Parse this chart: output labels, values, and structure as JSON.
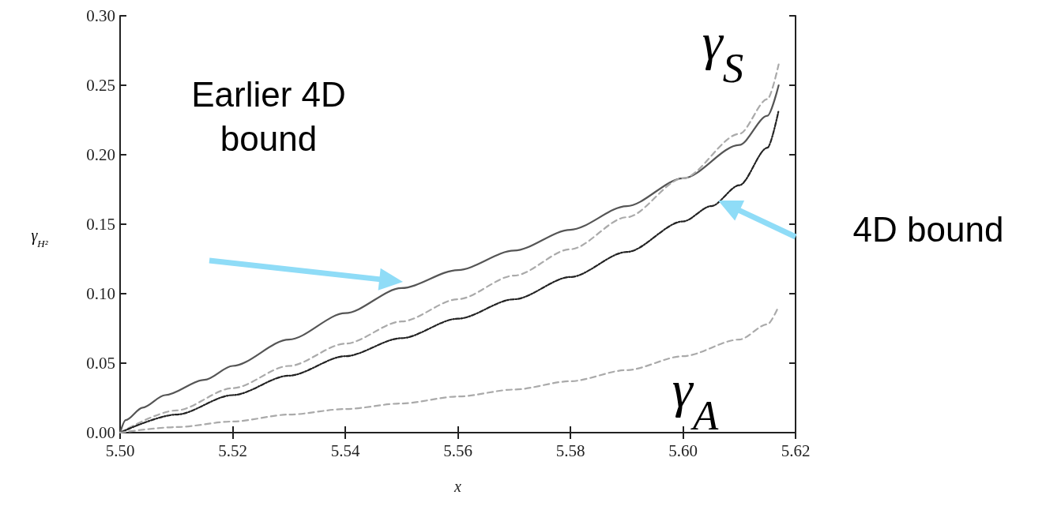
{
  "chart_data": {
    "type": "line",
    "xlabel": "x",
    "ylabel": "γ$_{H²}$",
    "xlim": [
      5.5,
      5.62
    ],
    "ylim": [
      0,
      0.3
    ],
    "xticks": [
      {
        "value": 5.5,
        "label": "5.50"
      },
      {
        "value": 5.52,
        "label": "5.52"
      },
      {
        "value": 5.54,
        "label": "5.54"
      },
      {
        "value": 5.56,
        "label": "5.56"
      },
      {
        "value": 5.58,
        "label": "5.58"
      },
      {
        "value": 5.6,
        "label": "5.60"
      },
      {
        "value": 5.62,
        "label": "5.62"
      }
    ],
    "yticks": [
      {
        "value": 0,
        "label": "0.00"
      },
      {
        "value": 0.05,
        "label": "0.05"
      },
      {
        "value": 0.1,
        "label": "0.10"
      },
      {
        "value": 0.15,
        "label": "0.15"
      },
      {
        "value": 0.2,
        "label": "0.20"
      },
      {
        "value": 0.25,
        "label": "0.25"
      },
      {
        "value": 0.3,
        "label": "0.30"
      }
    ],
    "grid": false,
    "marker": "none",
    "series": [
      {
        "color": "#555555",
        "line_style": "solid",
        "x": [
          5.5,
          5.501,
          5.504,
          5.508,
          5.515,
          5.52,
          5.53,
          5.54,
          5.55,
          5.56,
          5.57,
          5.58,
          5.59,
          5.6,
          5.61,
          5.615,
          5.617
        ],
        "values": [
          0,
          0.009,
          0.018,
          0.027,
          0.038,
          0.048,
          0.067,
          0.086,
          0.104,
          0.117,
          0.131,
          0.146,
          0.163,
          0.183,
          0.207,
          0.228,
          0.25
        ]
      },
      {
        "color": "#aaaaaa",
        "line_style": "dashed",
        "x": [
          5.5,
          5.51,
          5.52,
          5.53,
          5.54,
          5.55,
          5.56,
          5.57,
          5.58,
          5.59,
          5.6,
          5.61,
          5.615,
          5.617
        ],
        "values": [
          0,
          0.016,
          0.032,
          0.048,
          0.064,
          0.08,
          0.096,
          0.113,
          0.132,
          0.155,
          0.183,
          0.215,
          0.24,
          0.265
        ]
      },
      {
        "color": "#222222",
        "line_style": "dotted",
        "x": [
          5.5,
          5.51,
          5.52,
          5.53,
          5.54,
          5.55,
          5.56,
          5.57,
          5.58,
          5.59,
          5.6,
          5.605,
          5.61,
          5.615,
          5.617
        ],
        "values": [
          0,
          0.013,
          0.027,
          0.041,
          0.055,
          0.068,
          0.082,
          0.096,
          0.112,
          0.13,
          0.152,
          0.163,
          0.178,
          0.205,
          0.232
        ]
      },
      {
        "color": "#aaaaaa",
        "line_style": "dashed",
        "x": [
          5.5,
          5.51,
          5.52,
          5.53,
          5.54,
          5.55,
          5.56,
          5.57,
          5.58,
          5.59,
          5.6,
          5.61,
          5.615,
          5.617
        ],
        "values": [
          0,
          0.004,
          0.008,
          0.013,
          0.017,
          0.021,
          0.026,
          0.031,
          0.037,
          0.045,
          0.055,
          0.067,
          0.078,
          0.091
        ]
      }
    ],
    "annotations": [
      "Earlier 4D\nbound",
      "4D bound",
      "γ$_{S}$",
      "γ$_{A}$"
    ]
  }
}
